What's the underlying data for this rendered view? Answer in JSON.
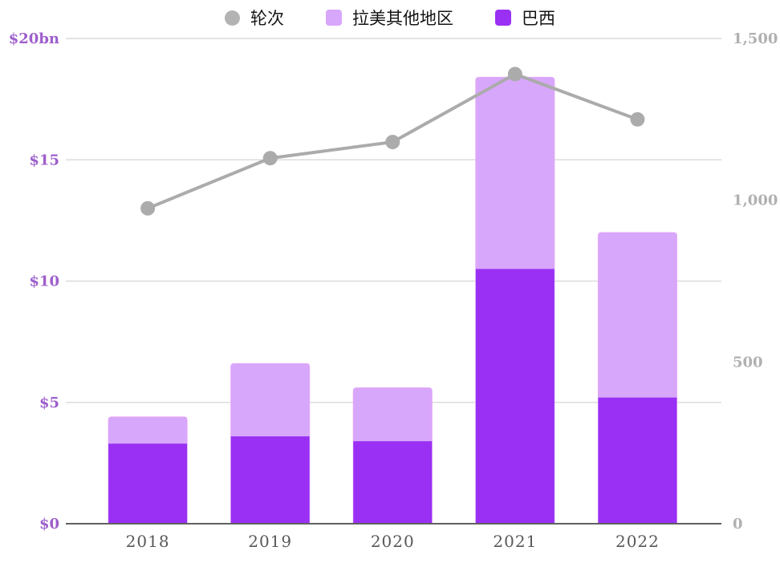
{
  "colors": {
    "background": "#ffffff",
    "brazil": "#9930F3",
    "latam": "#D7A7FB",
    "latam_border": "#E5A6F8",
    "line": "#ABABAB",
    "grid": "#DCDCDC",
    "baseline": "#616161",
    "left_axis_text": "#9D5FCC",
    "right_axis_text": "#B0B0B0",
    "x_axis_text": "#595959",
    "legend_text": "#141414"
  },
  "legend": {
    "items": [
      {
        "label": "轮次",
        "shape": "circle",
        "color": "#B3B3B3"
      },
      {
        "label": "拉美其他地区",
        "shape": "square",
        "color": "#D7A7FB"
      },
      {
        "label": "巴西",
        "shape": "square",
        "color": "#9930F3"
      }
    ]
  },
  "chart_data": {
    "type": "combo: stacked bar + line",
    "categories": [
      "2018",
      "2019",
      "2020",
      "2021",
      "2022"
    ],
    "series": [
      {
        "name": "巴西",
        "type": "bar",
        "stack": "funding",
        "axis": "left",
        "unit": "$bn",
        "values": [
          3.3,
          3.6,
          3.4,
          10.5,
          5.2
        ]
      },
      {
        "name": "拉美其他地区",
        "type": "bar",
        "stack": "funding",
        "axis": "left",
        "unit": "$bn",
        "values": [
          1.1,
          3.0,
          2.2,
          7.9,
          6.8
        ]
      },
      {
        "name": "轮次",
        "type": "line",
        "axis": "right",
        "values": [
          975,
          1130,
          1180,
          1390,
          1250
        ]
      }
    ],
    "stack_totals_bn": [
      4.4,
      6.6,
      5.6,
      18.4,
      12.0
    ],
    "left_axis": {
      "ticks": [
        "$0",
        "$5",
        "$10",
        "$15",
        "$20bn"
      ],
      "tick_values": [
        0,
        5,
        10,
        15,
        20
      ],
      "min": 0,
      "max": 20
    },
    "right_axis": {
      "ticks": [
        "0",
        "500",
        "1,000",
        "1,500"
      ],
      "tick_values": [
        0,
        500,
        1000,
        1500
      ],
      "min": 0,
      "max": 1500
    },
    "grid": true,
    "legend_position": "top"
  }
}
